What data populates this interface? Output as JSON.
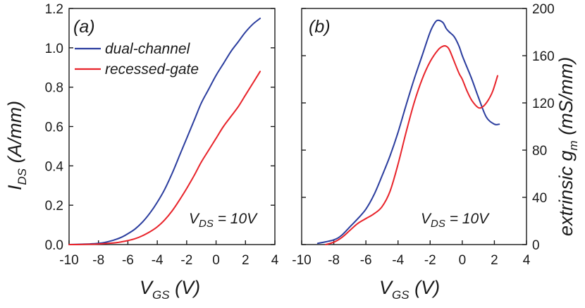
{
  "colors": {
    "dual_channel": "#2b3d9e",
    "recessed_gate": "#e8232a",
    "axis": "#1a1a1a"
  },
  "chart_data": [
    {
      "type": "line",
      "panel_label": "(a)",
      "xlabel": {
        "main": "V",
        "sub": "GS",
        "unit": " (V)"
      },
      "ylabel": {
        "main": "I",
        "sub": "DS",
        "unit": " (A/mm)"
      },
      "xlim": [
        -10,
        4
      ],
      "ylim": [
        0,
        1.2
      ],
      "xticks": [
        "-10",
        "-8",
        "-6",
        "-4",
        "-2",
        "0",
        "2",
        "4"
      ],
      "xtick_values": [
        -10,
        -8,
        -6,
        -4,
        -2,
        0,
        2,
        4
      ],
      "yticks": [
        "0.0",
        "0.2",
        "0.4",
        "0.6",
        "0.8",
        "1.0",
        "1.2"
      ],
      "ytick_values": [
        0,
        0.2,
        0.4,
        0.6,
        0.8,
        1.0,
        1.2
      ],
      "annotation": {
        "main": "V",
        "sub": "DS",
        "rest": " = 10V"
      },
      "legend": [
        "dual-channel",
        "recessed-gate"
      ],
      "series": [
        {
          "name": "dual-channel",
          "x": [
            -10,
            -9,
            -8,
            -7.5,
            -7,
            -6.5,
            -6,
            -5.5,
            -5,
            -4.5,
            -4,
            -3.5,
            -3,
            -2.5,
            -2,
            -1.5,
            -1,
            -0.5,
            0,
            0.5,
            1,
            1.5,
            2,
            2.5,
            3
          ],
          "y": [
            0,
            0.002,
            0.006,
            0.012,
            0.022,
            0.035,
            0.055,
            0.08,
            0.115,
            0.16,
            0.215,
            0.28,
            0.36,
            0.45,
            0.54,
            0.63,
            0.72,
            0.79,
            0.86,
            0.92,
            0.98,
            1.03,
            1.08,
            1.12,
            1.15
          ]
        },
        {
          "name": "recessed-gate",
          "x": [
            -10,
            -9,
            -8,
            -7,
            -6.5,
            -6,
            -5.5,
            -5,
            -4.5,
            -4,
            -3.5,
            -3,
            -2.5,
            -2,
            -1.5,
            -1,
            -0.5,
            0,
            0.5,
            1,
            1.5,
            2,
            2.5,
            3
          ],
          "y": [
            0,
            0.001,
            0.003,
            0.008,
            0.013,
            0.02,
            0.03,
            0.045,
            0.065,
            0.09,
            0.125,
            0.17,
            0.225,
            0.285,
            0.35,
            0.42,
            0.48,
            0.54,
            0.6,
            0.65,
            0.7,
            0.76,
            0.82,
            0.88
          ]
        }
      ]
    },
    {
      "type": "line",
      "panel_label": "(b)",
      "xlabel": {
        "main": "V",
        "sub": "GS",
        "unit": " (V)"
      },
      "ylabel": {
        "main": "extrinsic g",
        "sub": "m",
        "unit": " (mS/mm)"
      },
      "xlim": [
        -10,
        4
      ],
      "ylim": [
        0,
        200
      ],
      "xticks": [
        "-10",
        "-8",
        "-6",
        "-4",
        "-2",
        "0",
        "2",
        "4"
      ],
      "xtick_values": [
        -10,
        -8,
        -6,
        -4,
        -2,
        0,
        2,
        4
      ],
      "yticks": [
        "0",
        "40",
        "80",
        "120",
        "160",
        "200"
      ],
      "ytick_values": [
        0,
        40,
        80,
        120,
        160,
        200
      ],
      "annotation": {
        "main": "V",
        "sub": "DS",
        "rest": " = 10V"
      },
      "series": [
        {
          "name": "dual-channel",
          "x": [
            -9,
            -8,
            -7.5,
            -7,
            -6.5,
            -6,
            -5.5,
            -5,
            -4.5,
            -4,
            -3.5,
            -3,
            -2.5,
            -2,
            -1.7,
            -1.5,
            -1.2,
            -1,
            -0.8,
            -0.5,
            -0.2,
            0,
            0.3,
            0.6,
            1,
            1.5,
            2,
            2.3
          ],
          "y": [
            1,
            4,
            8,
            15,
            22,
            30,
            42,
            58,
            75,
            95,
            118,
            140,
            160,
            180,
            188,
            190,
            188,
            183,
            180,
            176,
            168,
            160,
            150,
            140,
            125,
            108,
            102,
            102
          ]
        },
        {
          "name": "recessed-gate",
          "x": [
            -8.5,
            -8,
            -7.5,
            -7,
            -6.5,
            -6,
            -5.5,
            -5,
            -4.5,
            -4,
            -3.5,
            -3,
            -2.5,
            -2,
            -1.5,
            -1.2,
            -1,
            -0.8,
            -0.5,
            -0.2,
            0,
            0.3,
            0.6,
            1,
            1.3,
            1.6,
            1.9,
            2.2
          ],
          "y": [
            0,
            2,
            6,
            12,
            18,
            22,
            26,
            32,
            45,
            68,
            95,
            120,
            140,
            155,
            165,
            168,
            168,
            165,
            155,
            145,
            140,
            130,
            122,
            116,
            117,
            122,
            130,
            143
          ]
        }
      ]
    }
  ]
}
